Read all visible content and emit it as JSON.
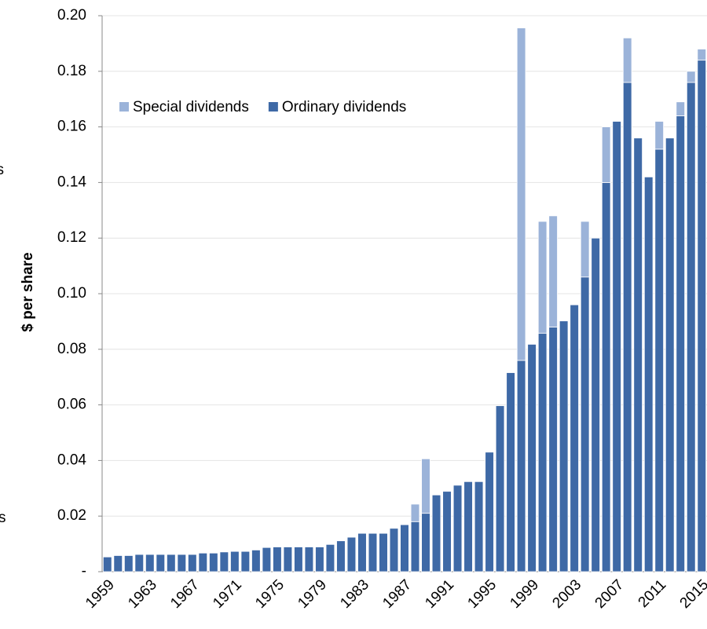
{
  "chart_data": {
    "type": "stacked_bar",
    "y_label": "$ per share",
    "annotations": [
      "ks",
      "s"
    ],
    "categories": [
      "1959",
      null,
      null,
      null,
      "1963",
      null,
      null,
      null,
      "1967",
      null,
      null,
      null,
      "1971",
      null,
      null,
      null,
      "1975",
      null,
      null,
      null,
      "1979",
      null,
      null,
      null,
      "1983",
      null,
      null,
      null,
      "1987",
      null,
      null,
      null,
      "1991",
      null,
      null,
      null,
      "1995",
      null,
      null,
      null,
      "1999",
      null,
      null,
      null,
      "2003",
      null,
      null,
      null,
      "2007",
      null,
      null,
      null,
      "2011",
      null,
      null,
      null,
      "2015"
    ],
    "series": [
      {
        "name": "Ordinary dividends",
        "color": "#3e69a6",
        "values": [
          0.0053,
          0.0058,
          0.0058,
          0.0062,
          0.0062,
          0.0062,
          0.0062,
          0.0062,
          0.0062,
          0.0067,
          0.0067,
          0.0071,
          0.0073,
          0.0073,
          0.0078,
          0.0087,
          0.0089,
          0.0089,
          0.0089,
          0.0089,
          0.0089,
          0.0098,
          0.0111,
          0.0124,
          0.0138,
          0.0138,
          0.0138,
          0.0156,
          0.0169,
          0.018,
          0.021,
          0.0276,
          0.0289,
          0.0311,
          0.0324,
          0.0324,
          0.043,
          0.0597,
          0.0716,
          0.076,
          0.0818,
          0.0858,
          0.088,
          0.0902,
          0.096,
          0.106,
          0.12,
          0.14,
          0.162,
          0.176,
          0.156,
          0.142,
          0.152,
          0.156,
          0.164,
          0.176,
          0.184
        ]
      },
      {
        "name": "Special dividends",
        "color": "#9bb3d9",
        "values": [
          0,
          0,
          0,
          0,
          0,
          0,
          0,
          0,
          0,
          0,
          0,
          0,
          0,
          0,
          0,
          0,
          0,
          0,
          0,
          0,
          0,
          0,
          0,
          0,
          0,
          0,
          0,
          0,
          0,
          0.0063,
          0.0196,
          0,
          0,
          0,
          0,
          0,
          0,
          0,
          0,
          0.1196,
          0,
          0.0402,
          0.04,
          0,
          0,
          0.02,
          0,
          0.02,
          0,
          0.016,
          0,
          0,
          0.01,
          0,
          0.005,
          0.004,
          0.004
        ]
      }
    ],
    "ylim": [
      0,
      0.2
    ],
    "yticks": [
      {
        "value": 0,
        "label": "-"
      },
      0.02,
      0.04,
      0.06,
      0.08,
      {
        "value": 0.1,
        "label": "0.10"
      },
      0.12,
      0.14,
      0.16,
      0.18,
      {
        "value": 0.2,
        "label": "0.20"
      }
    ],
    "grid": true
  }
}
